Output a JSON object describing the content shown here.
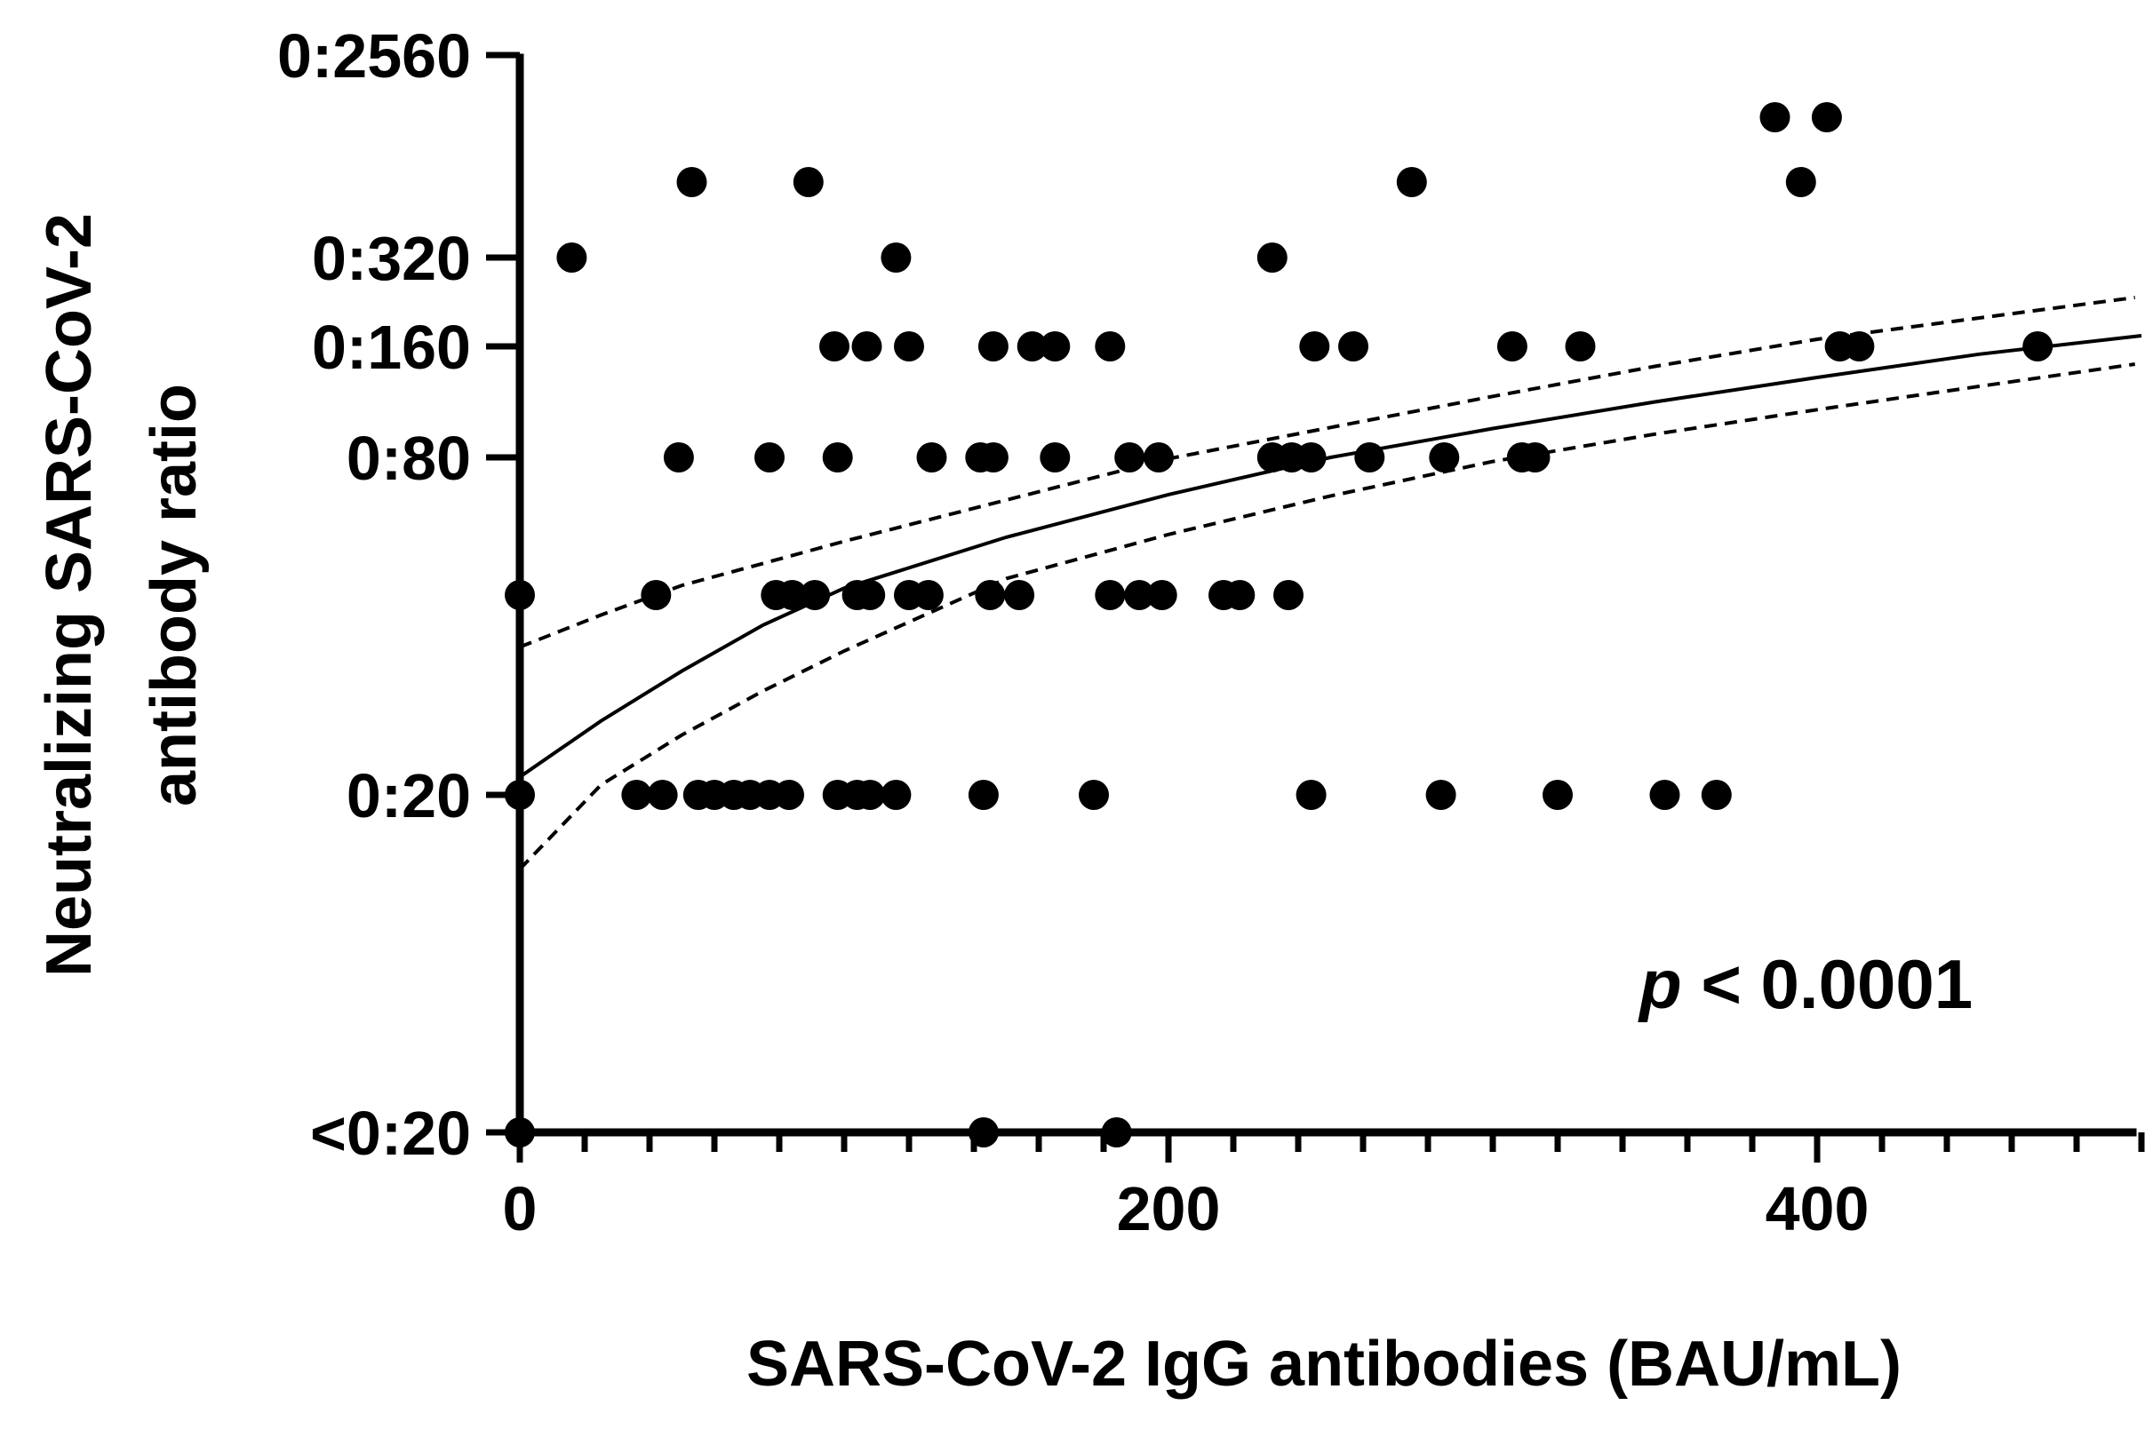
{
  "chart_data": {
    "type": "scatter",
    "xlabel": "SARS-CoV-2 IgG antibodies (BAU/mL)",
    "ylabel_lines": [
      "Neutralizing SARS-CoV-2",
      "antibody ratio"
    ],
    "xlim": [
      0,
      500
    ],
    "x_ticks": [
      0,
      200,
      400
    ],
    "x_minor_step": 20,
    "y_ticks": [
      {
        "label": "<0:20",
        "level": 0
      },
      {
        "label": "0:20",
        "level": 1
      },
      {
        "label": "0:80",
        "level": 3
      },
      {
        "label": "0:160",
        "level": 4
      },
      {
        "label": "0:320",
        "level": 5
      },
      {
        "label": "0:2560",
        "level": 8
      }
    ],
    "y_level_labels_note_units": "level k corresponds to titre 0:(10*2^k)",
    "annotation": {
      "p": "p",
      "rest": " < 0.0001"
    },
    "points": [
      {
        "x": 0,
        "y": 0
      },
      {
        "x": 0,
        "y": 1
      },
      {
        "x": 0,
        "y": 2
      },
      {
        "x": 143,
        "y": 0
      },
      {
        "x": 184,
        "y": 0
      },
      {
        "x": 36,
        "y": 1
      },
      {
        "x": 44,
        "y": 1
      },
      {
        "x": 55,
        "y": 1
      },
      {
        "x": 60,
        "y": 1
      },
      {
        "x": 66,
        "y": 1
      },
      {
        "x": 71,
        "y": 1
      },
      {
        "x": 77,
        "y": 1
      },
      {
        "x": 83,
        "y": 1
      },
      {
        "x": 98,
        "y": 1
      },
      {
        "x": 104,
        "y": 1
      },
      {
        "x": 108,
        "y": 1
      },
      {
        "x": 116,
        "y": 1
      },
      {
        "x": 143,
        "y": 1
      },
      {
        "x": 177,
        "y": 1
      },
      {
        "x": 244,
        "y": 1
      },
      {
        "x": 284,
        "y": 1
      },
      {
        "x": 320,
        "y": 1
      },
      {
        "x": 353,
        "y": 1
      },
      {
        "x": 369,
        "y": 1
      },
      {
        "x": 42,
        "y": 2
      },
      {
        "x": 79,
        "y": 2
      },
      {
        "x": 84,
        "y": 2
      },
      {
        "x": 91,
        "y": 2
      },
      {
        "x": 104,
        "y": 2
      },
      {
        "x": 108,
        "y": 2
      },
      {
        "x": 120,
        "y": 2
      },
      {
        "x": 126,
        "y": 2
      },
      {
        "x": 145,
        "y": 2
      },
      {
        "x": 154,
        "y": 2
      },
      {
        "x": 182,
        "y": 2
      },
      {
        "x": 191,
        "y": 2
      },
      {
        "x": 198,
        "y": 2
      },
      {
        "x": 217,
        "y": 2
      },
      {
        "x": 222,
        "y": 2
      },
      {
        "x": 237,
        "y": 2
      },
      {
        "x": 49,
        "y": 3
      },
      {
        "x": 77,
        "y": 3
      },
      {
        "x": 98,
        "y": 3
      },
      {
        "x": 127,
        "y": 3
      },
      {
        "x": 142,
        "y": 3
      },
      {
        "x": 146,
        "y": 3
      },
      {
        "x": 165,
        "y": 3
      },
      {
        "x": 188,
        "y": 3
      },
      {
        "x": 197,
        "y": 3
      },
      {
        "x": 232,
        "y": 3
      },
      {
        "x": 238,
        "y": 3
      },
      {
        "x": 244,
        "y": 3
      },
      {
        "x": 262,
        "y": 3
      },
      {
        "x": 285,
        "y": 3
      },
      {
        "x": 309,
        "y": 3
      },
      {
        "x": 313,
        "y": 3
      },
      {
        "x": 97,
        "y": 4
      },
      {
        "x": 107,
        "y": 4
      },
      {
        "x": 120,
        "y": 4
      },
      {
        "x": 146,
        "y": 4
      },
      {
        "x": 158,
        "y": 4
      },
      {
        "x": 165,
        "y": 4
      },
      {
        "x": 182,
        "y": 4
      },
      {
        "x": 245,
        "y": 4
      },
      {
        "x": 257,
        "y": 4
      },
      {
        "x": 306,
        "y": 4
      },
      {
        "x": 327,
        "y": 4
      },
      {
        "x": 407,
        "y": 4
      },
      {
        "x": 413,
        "y": 4
      },
      {
        "x": 468,
        "y": 4
      },
      {
        "x": 16,
        "y": 5
      },
      {
        "x": 116,
        "y": 5
      },
      {
        "x": 232,
        "y": 5
      },
      {
        "x": 53,
        "y": 6
      },
      {
        "x": 89,
        "y": 6
      },
      {
        "x": 275,
        "y": 6
      },
      {
        "x": 395,
        "y": 6
      },
      {
        "x": 387,
        "y": 7
      },
      {
        "x": 403,
        "y": 7
      }
    ],
    "fit_line": [
      [
        0,
        1.09
      ],
      [
        25,
        1.37
      ],
      [
        50,
        1.62
      ],
      [
        75,
        1.85
      ],
      [
        100,
        2.05
      ],
      [
        150,
        2.42
      ],
      [
        200,
        2.73
      ],
      [
        250,
        3.0
      ],
      [
        300,
        3.26
      ],
      [
        350,
        3.5
      ],
      [
        400,
        3.72
      ],
      [
        450,
        3.93
      ],
      [
        500,
        4.12
      ]
    ],
    "ci_upper": [
      [
        0,
        1.74
      ],
      [
        25,
        1.9
      ],
      [
        50,
        2.07
      ],
      [
        75,
        2.23
      ],
      [
        100,
        2.39
      ],
      [
        150,
        2.69
      ],
      [
        200,
        2.99
      ],
      [
        250,
        3.27
      ],
      [
        300,
        3.55
      ],
      [
        350,
        3.82
      ],
      [
        400,
        4.08
      ],
      [
        450,
        4.32
      ],
      [
        498,
        4.55
      ]
    ],
    "ci_upper_note": "fitted upper and lower bands, y in level units",
    "ci_lower": [
      [
        0,
        0.78
      ],
      [
        25,
        1.05
      ],
      [
        50,
        1.3
      ],
      [
        75,
        1.52
      ],
      [
        100,
        1.72
      ],
      [
        150,
        2.12
      ],
      [
        200,
        2.44
      ],
      [
        250,
        2.72
      ],
      [
        300,
        2.97
      ],
      [
        350,
        3.21
      ],
      [
        400,
        3.43
      ],
      [
        450,
        3.64
      ],
      [
        498,
        3.84
      ]
    ],
    "grid": false,
    "legend": "none"
  }
}
